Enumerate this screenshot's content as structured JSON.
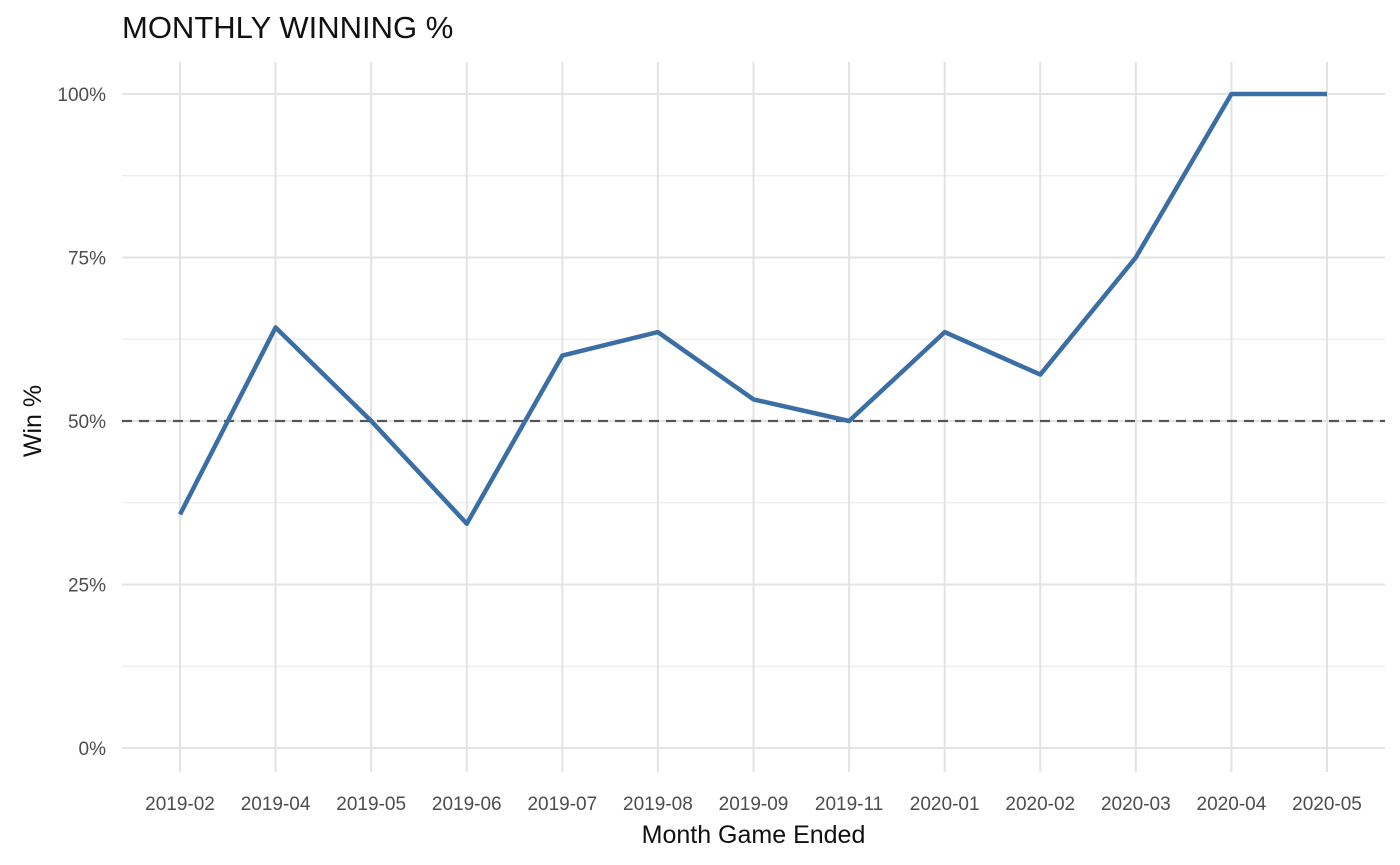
{
  "chart_data": {
    "type": "line",
    "title": "MONTHLY WINNING %",
    "xlabel": "Month Game Ended",
    "ylabel": "Win %",
    "categories": [
      "2019-02",
      "2019-04",
      "2019-05",
      "2019-06",
      "2019-07",
      "2019-08",
      "2019-09",
      "2019-11",
      "2020-01",
      "2020-02",
      "2020-03",
      "2020-04",
      "2020-05"
    ],
    "series": [
      {
        "values": [
          0.357,
          0.643,
          0.5,
          0.343,
          0.6,
          0.636,
          0.533,
          0.5,
          0.636,
          0.571,
          0.75,
          1.0,
          1.0
        ],
        "color": "#3a6ea5"
      }
    ],
    "reference_line": {
      "value": 0.5,
      "style": "dashed",
      "color": "#555555"
    },
    "ylim": [
      0,
      1
    ],
    "yticks": [
      0,
      0.25,
      0.5,
      0.75,
      1.0
    ],
    "ytick_labels": [
      "0%",
      "25%",
      "50%",
      "75%",
      "100%"
    ],
    "grid": true,
    "legend": "none"
  }
}
